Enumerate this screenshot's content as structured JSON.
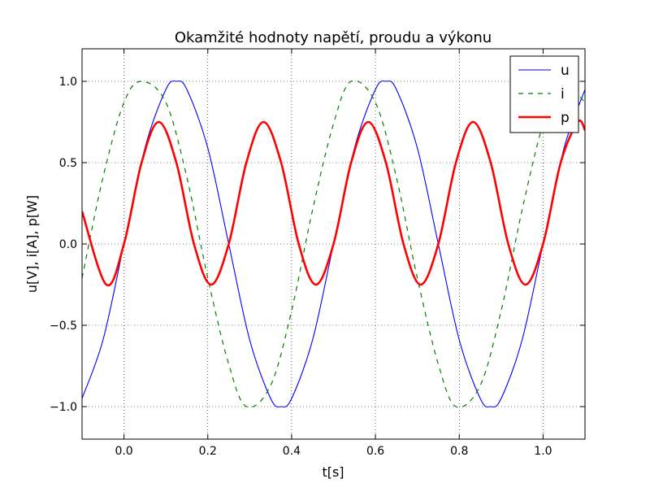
{
  "chart_data": {
    "type": "line",
    "title": "Okamžité hodnoty napětí, proudu a výkonu",
    "xlabel": "t[s]",
    "ylabel": "u[V], i[A], p[W]",
    "xlim": [
      -0.1,
      1.1
    ],
    "ylim": [
      -1.2,
      1.2
    ],
    "x_ticks": [
      0.0,
      0.2,
      0.4,
      0.6,
      0.8,
      1.0
    ],
    "x_tick_labels": [
      "0.0",
      "0.2",
      "0.4",
      "0.6",
      "0.8",
      "1.0"
    ],
    "y_ticks": [
      -1.0,
      -0.5,
      0.0,
      0.5,
      1.0
    ],
    "y_tick_labels": [
      "−1.0",
      "−0.5",
      "0.0",
      "0.5",
      "1.0"
    ],
    "grid": true,
    "legend_position": "top-right",
    "series": [
      {
        "name": "u",
        "color": "#0000ff",
        "style": "solid",
        "x": [
          -0.1,
          -0.05,
          0.0,
          0.05,
          0.1,
          0.125,
          0.15,
          0.2,
          0.25,
          0.3,
          0.35,
          0.375,
          0.4,
          0.45,
          0.5,
          0.55,
          0.6,
          0.625,
          0.65,
          0.7,
          0.75,
          0.8,
          0.85,
          0.875,
          0.9,
          0.95,
          1.0,
          1.05,
          1.1
        ],
        "y": [
          -0.95,
          -0.59,
          0.0,
          0.59,
          0.95,
          1.0,
          0.95,
          0.59,
          0.0,
          -0.59,
          -0.95,
          -1.0,
          -0.95,
          -0.59,
          0.0,
          0.59,
          0.95,
          1.0,
          0.95,
          0.59,
          0.0,
          -0.59,
          -0.95,
          -1.0,
          -0.95,
          -0.59,
          0.0,
          0.59,
          0.95
        ]
      },
      {
        "name": "i",
        "color": "#008000",
        "style": "dashed",
        "x": [
          -0.1,
          -0.05,
          0.0,
          0.042,
          0.1,
          0.15,
          0.2,
          0.25,
          0.292,
          0.35,
          0.4,
          0.45,
          0.5,
          0.542,
          0.6,
          0.65,
          0.7,
          0.75,
          0.792,
          0.85,
          0.9,
          0.95,
          1.0,
          1.042,
          1.1
        ],
        "y": [
          -0.21,
          0.41,
          0.87,
          1.0,
          0.87,
          0.41,
          -0.21,
          -0.74,
          -1.0,
          -0.87,
          -0.41,
          0.21,
          0.74,
          1.0,
          0.87,
          0.41,
          -0.21,
          -0.74,
          -1.0,
          -0.87,
          -0.41,
          0.21,
          0.74,
          1.0,
          0.87
        ]
      },
      {
        "name": "p",
        "color": "#ff0000",
        "style": "solid-thick",
        "x": [
          -0.1,
          -0.042,
          0.0,
          0.042,
          0.083,
          0.125,
          0.167,
          0.208,
          0.25,
          0.292,
          0.333,
          0.375,
          0.417,
          0.458,
          0.5,
          0.542,
          0.583,
          0.625,
          0.667,
          0.708,
          0.75,
          0.792,
          0.833,
          0.875,
          0.917,
          0.958,
          1.0,
          1.042,
          1.083,
          1.1
        ],
        "y": [
          0.2,
          -0.25,
          0.0,
          0.5,
          0.75,
          0.5,
          0.0,
          -0.25,
          0.0,
          0.5,
          0.75,
          0.5,
          0.0,
          -0.25,
          0.0,
          0.5,
          0.75,
          0.5,
          0.0,
          -0.25,
          0.0,
          0.5,
          0.75,
          0.5,
          0.0,
          -0.25,
          0.0,
          0.5,
          0.75,
          0.7
        ]
      }
    ]
  }
}
